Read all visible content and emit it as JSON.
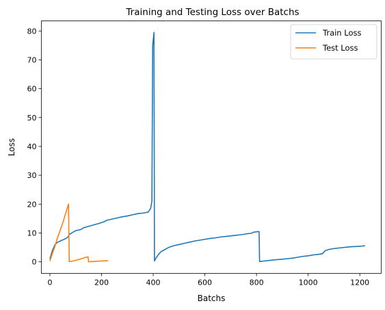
{
  "chart_data": {
    "type": "line",
    "title": "Training and Testing Loss over Batchs",
    "xlabel": "Batchs",
    "ylabel": "Loss",
    "xlim": [
      -33,
      1283
    ],
    "ylim": [
      -4,
      83.5
    ],
    "xticks": [
      0,
      200,
      400,
      600,
      800,
      1000,
      1200
    ],
    "yticks": [
      0,
      10,
      20,
      30,
      40,
      50,
      60,
      70,
      80
    ],
    "legend": "top-right",
    "grid": false,
    "series": [
      {
        "name": "Train Loss",
        "color": "#1f77b4",
        "points": [
          [
            0,
            1.0
          ],
          [
            10,
            4.0
          ],
          [
            20,
            6.0
          ],
          [
            30,
            6.8
          ],
          [
            40,
            7.2
          ],
          [
            50,
            7.6
          ],
          [
            60,
            8.0
          ],
          [
            70,
            8.6
          ],
          [
            75,
            9.5
          ],
          [
            90,
            10.3
          ],
          [
            100,
            10.8
          ],
          [
            120,
            11.2
          ],
          [
            130,
            11.8
          ],
          [
            150,
            12.3
          ],
          [
            170,
            12.8
          ],
          [
            190,
            13.3
          ],
          [
            210,
            13.9
          ],
          [
            220,
            14.4
          ],
          [
            240,
            14.8
          ],
          [
            260,
            15.2
          ],
          [
            280,
            15.6
          ],
          [
            300,
            15.9
          ],
          [
            320,
            16.3
          ],
          [
            340,
            16.7
          ],
          [
            360,
            16.9
          ],
          [
            380,
            17.2
          ],
          [
            390,
            18.5
          ],
          [
            395,
            21.0
          ],
          [
            398,
            75.0
          ],
          [
            403,
            79.5
          ],
          [
            405,
            0.3
          ],
          [
            410,
            1.2
          ],
          [
            420,
            2.5
          ],
          [
            430,
            3.5
          ],
          [
            440,
            4.0
          ],
          [
            450,
            4.5
          ],
          [
            460,
            5.0
          ],
          [
            480,
            5.6
          ],
          [
            500,
            6.0
          ],
          [
            520,
            6.4
          ],
          [
            540,
            6.8
          ],
          [
            560,
            7.2
          ],
          [
            580,
            7.5
          ],
          [
            600,
            7.8
          ],
          [
            620,
            8.1
          ],
          [
            640,
            8.3
          ],
          [
            660,
            8.6
          ],
          [
            680,
            8.8
          ],
          [
            700,
            9.0
          ],
          [
            720,
            9.2
          ],
          [
            740,
            9.4
          ],
          [
            760,
            9.7
          ],
          [
            780,
            9.9
          ],
          [
            790,
            10.3
          ],
          [
            810,
            10.5
          ],
          [
            812,
            0.1
          ],
          [
            830,
            0.3
          ],
          [
            850,
            0.5
          ],
          [
            870,
            0.7
          ],
          [
            900,
            0.9
          ],
          [
            920,
            1.1
          ],
          [
            940,
            1.3
          ],
          [
            960,
            1.6
          ],
          [
            980,
            1.9
          ],
          [
            1000,
            2.1
          ],
          [
            1020,
            2.4
          ],
          [
            1040,
            2.6
          ],
          [
            1055,
            2.8
          ],
          [
            1065,
            3.8
          ],
          [
            1080,
            4.3
          ],
          [
            1100,
            4.6
          ],
          [
            1120,
            4.8
          ],
          [
            1140,
            5.0
          ],
          [
            1160,
            5.2
          ],
          [
            1180,
            5.3
          ],
          [
            1200,
            5.4
          ],
          [
            1220,
            5.6
          ]
        ]
      },
      {
        "name": "Test Loss",
        "color": "#ff7f0e",
        "points": [
          [
            0,
            0.3
          ],
          [
            10,
            3.0
          ],
          [
            20,
            5.5
          ],
          [
            30,
            8.5
          ],
          [
            40,
            11.0
          ],
          [
            50,
            13.5
          ],
          [
            60,
            16.5
          ],
          [
            72,
            20.0
          ],
          [
            75,
            0.1
          ],
          [
            90,
            0.3
          ],
          [
            100,
            0.5
          ],
          [
            110,
            0.8
          ],
          [
            120,
            1.0
          ],
          [
            130,
            1.3
          ],
          [
            140,
            1.6
          ],
          [
            148,
            1.7
          ],
          [
            150,
            0.0
          ],
          [
            165,
            0.1
          ],
          [
            180,
            0.2
          ],
          [
            200,
            0.3
          ],
          [
            215,
            0.35
          ],
          [
            225,
            0.4
          ]
        ]
      }
    ]
  }
}
